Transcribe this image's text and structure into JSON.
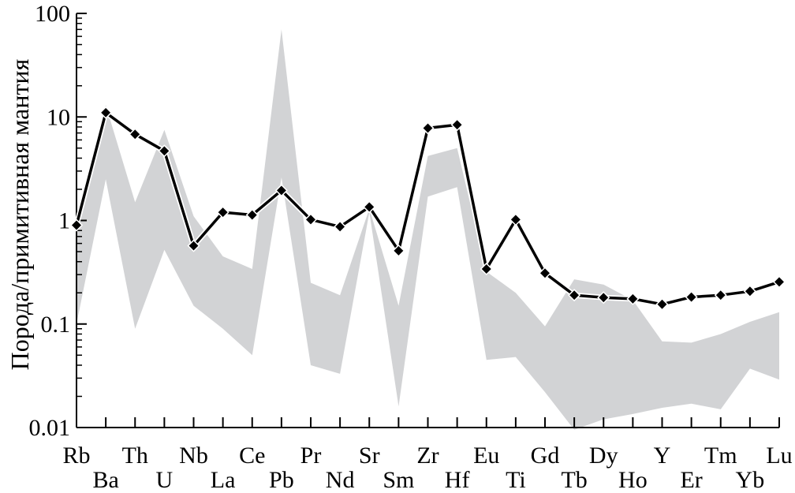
{
  "chart_data": {
    "type": "line",
    "ylabel": "Порода/примитивная мантия",
    "xlabel": "",
    "yscale": "log",
    "ylim": [
      0.01,
      100
    ],
    "yticks": [
      {
        "value": 100,
        "label": "100"
      },
      {
        "value": 10,
        "label": "10"
      },
      {
        "value": 1,
        "label": "1"
      },
      {
        "value": 0.1,
        "label": "0.1"
      },
      {
        "value": 0.01,
        "label": "0.01"
      }
    ],
    "categories": [
      "Rb",
      "Ba",
      "Th",
      "U",
      "Nb",
      "La",
      "Ce",
      "Pb",
      "Pr",
      "Nd",
      "Sr",
      "Sm",
      "Zr",
      "Hf",
      "Eu",
      "Ti",
      "Gd",
      "Tb",
      "Dy",
      "Ho",
      "Y",
      "Er",
      "Tm",
      "Yb",
      "Lu"
    ],
    "series": [
      {
        "values": [
          0.9,
          11,
          6.8,
          4.7,
          0.57,
          1.2,
          1.13,
          1.95,
          1.02,
          0.87,
          1.35,
          0.51,
          7.8,
          8.4,
          0.34,
          1.02,
          0.31,
          0.19,
          0.18,
          0.175,
          0.155,
          0.182,
          0.19,
          0.207,
          0.255
        ],
        "color": "#000000",
        "marker": "diamond"
      }
    ],
    "band": {
      "color": "#d2d3d5",
      "upper": [
        1.0,
        13,
        1.5,
        7.5,
        1.1,
        0.45,
        0.34,
        70,
        0.25,
        0.19,
        1.3,
        0.15,
        4.2,
        5.0,
        0.32,
        0.2,
        0.095,
        0.27,
        0.24,
        0.17,
        0.068,
        0.066,
        0.08,
        0.105,
        0.13
      ],
      "lower": [
        0.1,
        2.5,
        0.09,
        0.52,
        0.15,
        0.09,
        0.05,
        2.6,
        0.04,
        0.033,
        1.2,
        0.016,
        1.7,
        2.1,
        0.045,
        0.048,
        0.022,
        0.0095,
        0.012,
        0.0135,
        0.0155,
        0.017,
        0.015,
        0.037,
        0.029
      ]
    },
    "grid": false,
    "legend": "none"
  }
}
